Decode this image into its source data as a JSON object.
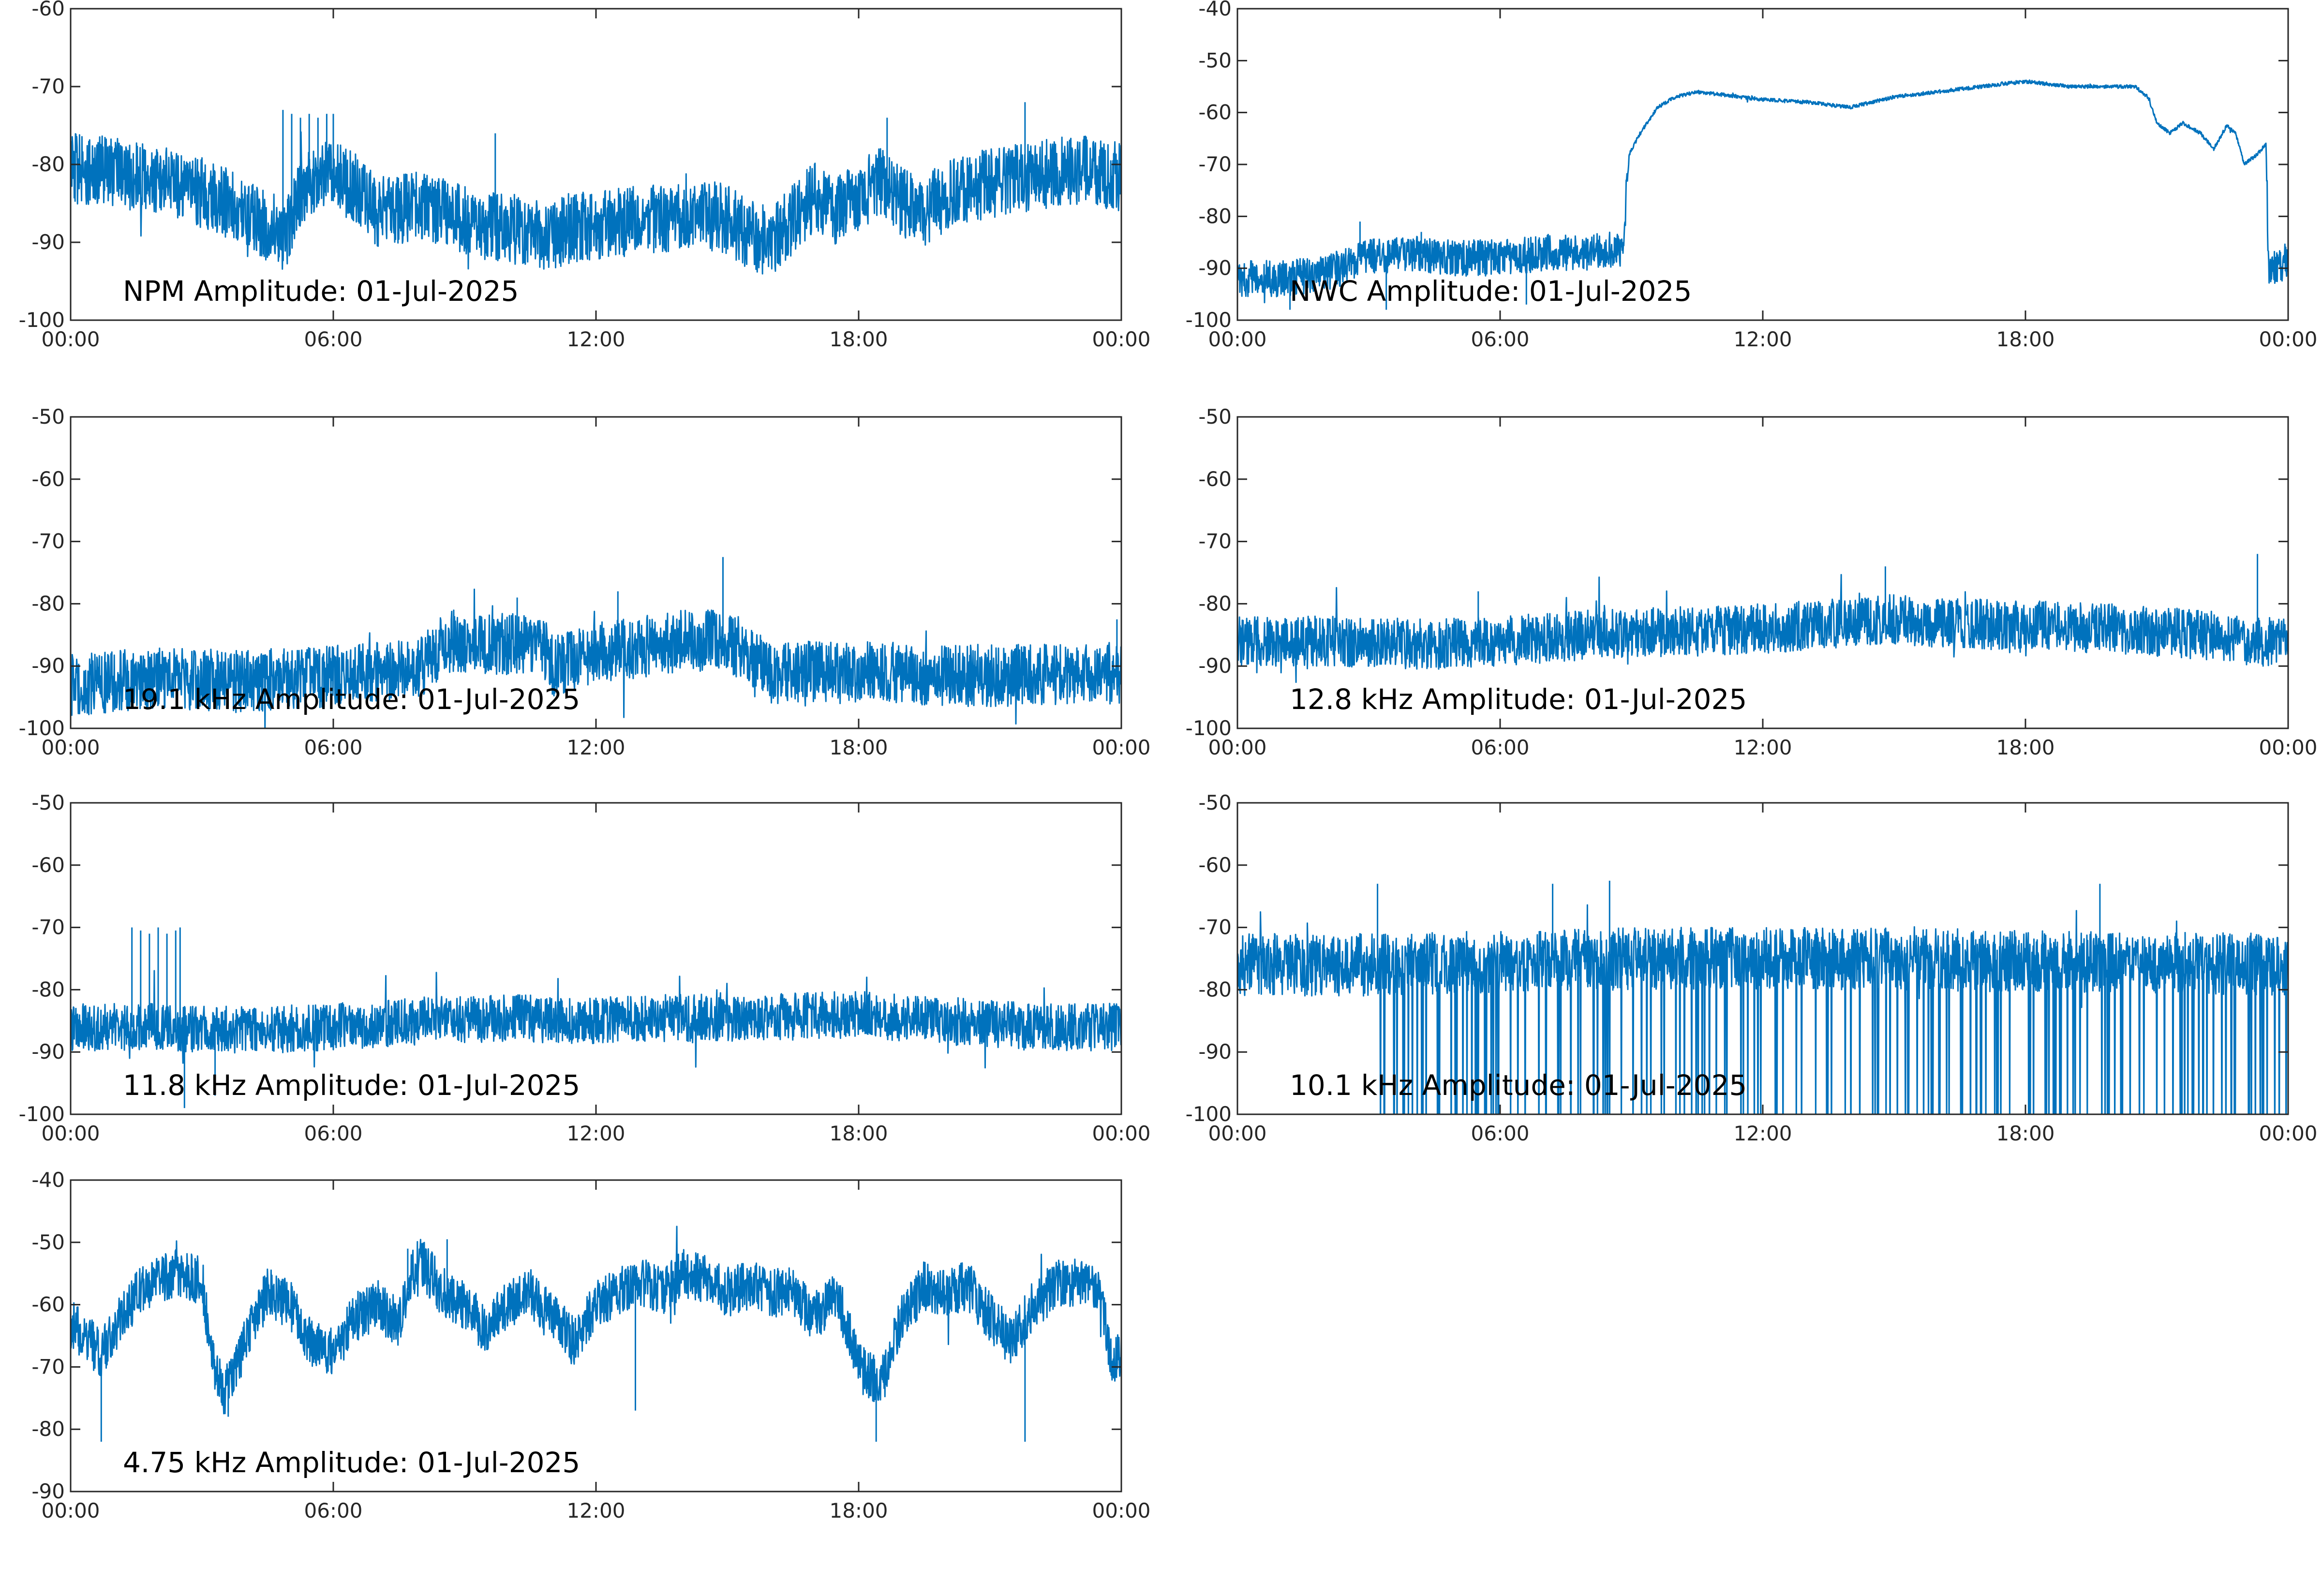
{
  "style": {
    "trace_color": "#0072BD",
    "axis_color": "#262626"
  },
  "chart_data": [
    {
      "type": "line",
      "label": "NPM Amplitude: 01-Jul-2025",
      "ylim": [
        -100,
        -60
      ],
      "yticks": [
        -60,
        -70,
        -80,
        -90,
        -100
      ],
      "xticks": [
        "00:00",
        "06:00",
        "12:00",
        "18:00",
        "00:00"
      ],
      "grid": false,
      "series": [
        {
          "x": [
            0,
            1,
            2,
            3,
            4,
            4.5,
            4.8,
            5,
            5.3,
            5.5,
            6,
            6.5,
            7,
            7.5,
            8,
            8.5,
            9,
            9.5,
            10,
            10.5,
            11,
            11.5,
            12,
            12.5,
            13,
            13.5,
            14,
            14.5,
            15,
            15.5,
            16,
            16.5,
            17,
            17.5,
            18,
            18.5,
            19,
            19.5,
            20,
            20.5,
            21,
            21.5,
            22,
            22.5,
            23,
            23.5,
            24
          ],
          "y": [
            -80.5,
            -81,
            -82,
            -83.5,
            -86,
            -88,
            -90,
            -88,
            -83,
            -82,
            -81.5,
            -83,
            -86,
            -86,
            -85,
            -86,
            -87,
            -88,
            -88,
            -89,
            -89,
            -88,
            -88,
            -87.5,
            -87,
            -87,
            -86.5,
            -86.5,
            -87,
            -89,
            -90,
            -87,
            -84,
            -86,
            -84,
            -82,
            -85,
            -86,
            -84,
            -83,
            -82.5,
            -82,
            -81.5,
            -81,
            -80.8,
            -81,
            -81.5
          ],
          "noise": 4.5,
          "spikes": [
            [
              4.85,
              -73
            ],
            [
              5.05,
              -73.5
            ],
            [
              5.25,
              -74
            ],
            [
              5.45,
              -73.5
            ],
            [
              5.65,
              -74
            ],
            [
              5.85,
              -73.5
            ],
            [
              6.0,
              -73.5
            ],
            [
              9.7,
              -76
            ],
            [
              18.65,
              -74
            ],
            [
              21.8,
              -72
            ]
          ]
        }
      ]
    },
    {
      "type": "line",
      "label": "NWC Amplitude: 01-Jul-2025",
      "ylim": [
        -100,
        -40
      ],
      "yticks": [
        -40,
        -50,
        -60,
        -70,
        -80,
        -90,
        -100
      ],
      "xticks": [
        "00:00",
        "06:00",
        "12:00",
        "18:00",
        "00:00"
      ],
      "grid": false,
      "series": [
        {
          "x": [
            0,
            1,
            2,
            3,
            4,
            5,
            6,
            7,
            8,
            8.8,
            8.95,
            9.2,
            9.6,
            10,
            10.5,
            11,
            12,
            13,
            14,
            15,
            16,
            17,
            18,
            18.5,
            19,
            19.5,
            20,
            20.5,
            20.8,
            21,
            21.3,
            21.6,
            22,
            22.3,
            22.6,
            22.8,
            23,
            23.3,
            23.5,
            23.55,
            23.8,
            24
          ],
          "y": [
            -92,
            -92,
            -91,
            -88,
            -87,
            -88,
            -88,
            -87,
            -87,
            -86,
            -68,
            -64,
            -59,
            -57,
            -56,
            -56.5,
            -57.5,
            -58,
            -59,
            -57,
            -56,
            -55,
            -54,
            -54.5,
            -55,
            -55,
            -55,
            -55,
            -57,
            -62,
            -64,
            -62,
            -64,
            -67,
            -62.5,
            -64,
            -70,
            -68,
            -66,
            -90,
            -90,
            -88
          ],
          "noise": 3.5,
          "noise_until": 8.9,
          "noise_from": 23.5,
          "spikes": [
            [
              2.8,
              -81
            ],
            [
              4.2,
              -83
            ],
            [
              1.2,
              -98
            ],
            [
              3.4,
              -98
            ],
            [
              6.6,
              -97
            ]
          ]
        }
      ]
    },
    {
      "type": "line",
      "label": "19.1 kHz Amplitude: 01-Jul-2025",
      "ylim": [
        -100,
        -50
      ],
      "yticks": [
        -50,
        -60,
        -70,
        -80,
        -90,
        -100
      ],
      "xticks": [
        "00:00",
        "06:00",
        "12:00",
        "18:00",
        "00:00"
      ],
      "grid": false,
      "series": [
        {
          "x": [
            0,
            2,
            4,
            6,
            8,
            8.6,
            9,
            10,
            10.8,
            11,
            12,
            13,
            14,
            15,
            15.5,
            16,
            18,
            20,
            22,
            24
          ],
          "y": [
            -93,
            -92,
            -92.5,
            -91.5,
            -90,
            -86,
            -86,
            -86.5,
            -87,
            -90,
            -88,
            -87,
            -86,
            -86,
            -88,
            -91,
            -91,
            -91.5,
            -91.5,
            -91
          ],
          "noise": 5,
          "spikes": [
            [
              14.9,
              -72.5
            ],
            [
              12.5,
              -78
            ],
            [
              10.2,
              -79
            ],
            [
              23.9,
              -82.5
            ]
          ]
        }
      ]
    },
    {
      "type": "line",
      "label": "12.8 kHz Amplitude: 01-Jul-2025",
      "ylim": [
        -100,
        -50
      ],
      "yticks": [
        -50,
        -60,
        -70,
        -80,
        -90,
        -100
      ],
      "xticks": [
        "00:00",
        "06:00",
        "12:00",
        "18:00",
        "00:00"
      ],
      "grid": false,
      "series": [
        {
          "x": [
            0,
            2,
            4,
            6,
            8,
            10,
            12,
            14,
            15,
            16,
            18,
            20,
            22,
            24
          ],
          "y": [
            -86,
            -86,
            -86.5,
            -86,
            -85,
            -84.5,
            -84,
            -83,
            -82.5,
            -83,
            -83.5,
            -84,
            -85,
            -86.5
          ],
          "noise": 4,
          "spikes": [
            [
              23.3,
              -72
            ],
            [
              14.8,
              -74
            ],
            [
              5.5,
              -78
            ]
          ]
        }
      ]
    },
    {
      "type": "line",
      "label": "11.8 kHz Amplitude: 01-Jul-2025",
      "ylim": [
        -100,
        -50
      ],
      "yticks": [
        -50,
        -60,
        -70,
        -80,
        -90,
        -100
      ],
      "xticks": [
        "00:00",
        "06:00",
        "12:00",
        "18:00",
        "00:00"
      ],
      "grid": false,
      "series": [
        {
          "x": [
            0,
            2,
            4,
            6,
            8,
            10,
            12,
            14,
            16,
            18,
            20,
            22,
            24
          ],
          "y": [
            -86,
            -86,
            -86.5,
            -86,
            -85,
            -84.5,
            -85,
            -84.5,
            -84.5,
            -84,
            -85,
            -86,
            -86
          ],
          "noise": 3.8,
          "spikes": [
            [
              1.4,
              -70
            ],
            [
              1.6,
              -70.5
            ],
            [
              1.8,
              -71
            ],
            [
              2.0,
              -70
            ],
            [
              2.2,
              -71
            ],
            [
              2.4,
              -70.5
            ],
            [
              2.5,
              -70
            ],
            [
              2.6,
              -99
            ],
            [
              3.3,
              -97
            ]
          ]
        }
      ]
    },
    {
      "type": "line",
      "label": "10.1 kHz Amplitude: 01-Jul-2025",
      "ylim": [
        -100,
        -50
      ],
      "yticks": [
        -50,
        -60,
        -70,
        -80,
        -90,
        -100
      ],
      "xticks": [
        "00:00",
        "06:00",
        "12:00",
        "18:00",
        "00:00"
      ],
      "grid": false,
      "series": [
        {
          "x": [
            0,
            3,
            6,
            9,
            12,
            15,
            18,
            21,
            24
          ],
          "y": [
            -76,
            -76,
            -75.5,
            -75,
            -75,
            -75,
            -75.5,
            -75.5,
            -76
          ],
          "noise": 5,
          "dropouts": true,
          "dropout_start": 2.8,
          "spikes": [
            [
              3.2,
              -63
            ],
            [
              7.2,
              -63
            ],
            [
              8.5,
              -62.5
            ],
            [
              19.7,
              -63
            ]
          ]
        }
      ]
    },
    {
      "type": "line",
      "label": "4.75 kHz Amplitude: 01-Jul-2025",
      "ylim": [
        -90,
        -40
      ],
      "yticks": [
        -40,
        -50,
        -60,
        -70,
        -80,
        -90
      ],
      "xticks": [
        "00:00",
        "06:00",
        "12:00",
        "18:00",
        "00:00"
      ],
      "grid": false,
      "series": [
        {
          "x": [
            0,
            0.3,
            0.7,
            1,
            1.5,
            2,
            2.5,
            3,
            3.2,
            3.5,
            4,
            4.5,
            5,
            5.5,
            6,
            6.5,
            7,
            7.5,
            7.8,
            8,
            8.5,
            9,
            9.5,
            10,
            10.5,
            11,
            11.5,
            12,
            12.5,
            13,
            13.5,
            14,
            14.5,
            15,
            15.5,
            16,
            16.5,
            17,
            17.5,
            18,
            18.5,
            19,
            19.5,
            20,
            20.5,
            21,
            21.5,
            22,
            22.5,
            23,
            23.5,
            23.8,
            24
          ],
          "y": [
            -63,
            -65,
            -68,
            -64,
            -58,
            -56,
            -55,
            -56,
            -68,
            -74,
            -66,
            -58,
            -60,
            -66,
            -68,
            -62,
            -60,
            -63,
            -55,
            -53,
            -58,
            -60,
            -64,
            -60,
            -58,
            -62,
            -66,
            -60,
            -58,
            -56,
            -58,
            -55,
            -56,
            -58,
            -57,
            -58,
            -58,
            -62,
            -58,
            -70,
            -73,
            -62,
            -57,
            -58,
            -57,
            -62,
            -66,
            -60,
            -57,
            -56,
            -58,
            -70,
            -68
          ],
          "noise": 4,
          "spikes": [
            [
              8.6,
              -49.5
            ],
            [
              7.7,
              -51
            ],
            [
              0.7,
              -82
            ],
            [
              3.6,
              -78
            ],
            [
              21.8,
              -82
            ],
            [
              18.4,
              -82
            ],
            [
              12.9,
              -77
            ]
          ]
        }
      ]
    }
  ]
}
